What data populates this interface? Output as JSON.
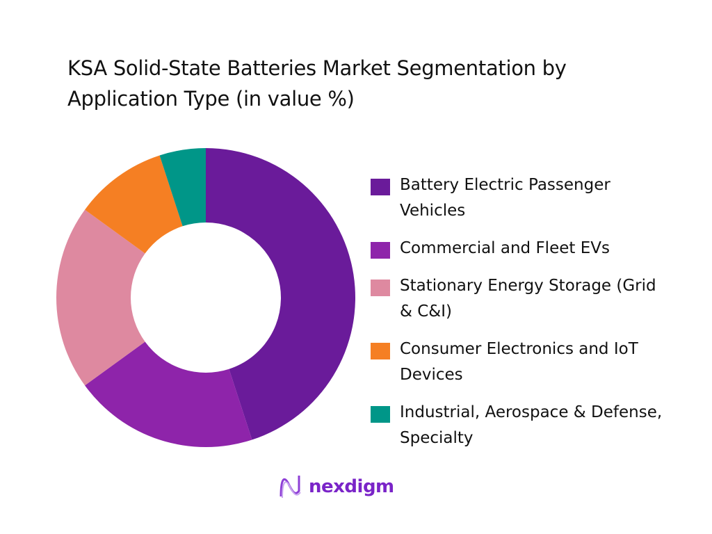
{
  "title": "KSA Solid-State Batteries Market Segmentation by Application Type (in value %)",
  "chart_data": {
    "type": "pie",
    "subtype": "donut",
    "title": "KSA Solid-State Batteries Market Segmentation by Application Type (in value %)",
    "categories": [
      "Battery Electric Passenger Vehicles",
      "Commercial and Fleet EVs",
      "Stationary Energy Storage (Grid & C&I)",
      "Consumer Electronics and IoT Devices",
      "Industrial, Aerospace & Defense, Specialty"
    ],
    "values": [
      45,
      20,
      20,
      10,
      5
    ],
    "unit": "%",
    "colors": [
      "#6a1b9a",
      "#8e24aa",
      "#de89a0",
      "#f57f23",
      "#009688"
    ],
    "start_angle": "12 o'clock",
    "direction": "clockwise",
    "legend_position": "right",
    "data_labels": false
  },
  "legend": {
    "items": [
      {
        "label": "Battery Electric Passenger Vehicles",
        "color": "#6a1b9a"
      },
      {
        "label": "Commercial and Fleet EVs",
        "color": "#8e24aa"
      },
      {
        "label": "Stationary Energy Storage (Grid & C&I)",
        "color": "#de89a0"
      },
      {
        "label": "Consumer Electronics and IoT Devices",
        "color": "#f57f23"
      },
      {
        "label": "Industrial, Aerospace & Defense, Specialty",
        "color": "#009688"
      }
    ]
  },
  "branding": {
    "logo_text": "nexdigm",
    "logo_icon": "wave-n-icon"
  }
}
